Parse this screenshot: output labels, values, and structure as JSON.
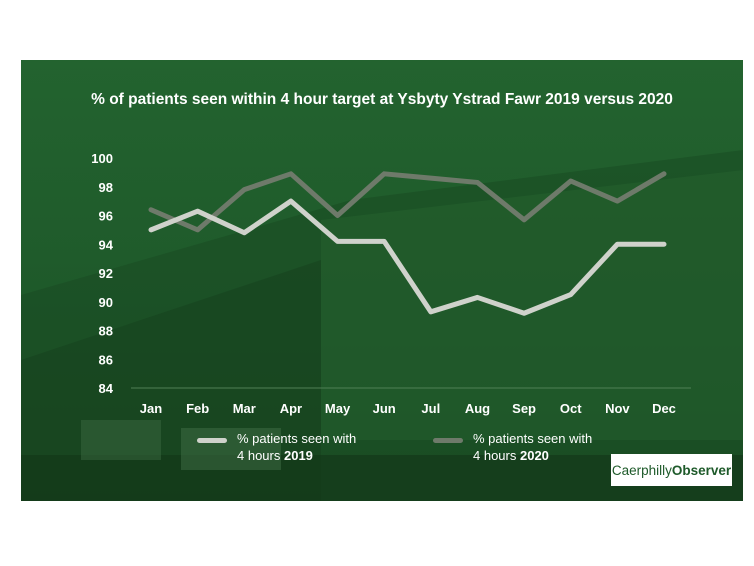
{
  "colors": {
    "panel_bg": "#1f5b2b",
    "series_2019": "#cfd2cb",
    "series_2020": "#6e7a6a",
    "text": "#ffffff"
  },
  "chart_data": {
    "type": "line",
    "title": "% of patients seen within 4 hour target at Ysbyty Ystrad Fawr 2019 versus 2020",
    "categories": [
      "Jan",
      "Feb",
      "Mar",
      "Apr",
      "May",
      "Jun",
      "Jul",
      "Aug",
      "Sep",
      "Oct",
      "Nov",
      "Dec"
    ],
    "ylim": [
      84,
      100
    ],
    "yticks": [
      84,
      86,
      88,
      90,
      92,
      94,
      96,
      98,
      100
    ],
    "grid": false,
    "legend_position": "bottom",
    "series": [
      {
        "name_line1": "% patients seen with",
        "name_line2_prefix": "4 hours ",
        "name_line2_year": "2019",
        "values": [
          95.0,
          96.3,
          94.8,
          97.0,
          94.2,
          94.2,
          89.3,
          90.3,
          89.2,
          90.5,
          94.0,
          94.0
        ]
      },
      {
        "name_line1": "% patients seen with",
        "name_line2_prefix": "4 hours ",
        "name_line2_year": "2020",
        "values": [
          96.4,
          95.0,
          97.8,
          98.9,
          96.0,
          98.9,
          98.6,
          98.3,
          95.7,
          98.4,
          97.0,
          98.9
        ]
      }
    ]
  },
  "brand": {
    "part1": "Caerphilly",
    "part2": "Observer"
  }
}
